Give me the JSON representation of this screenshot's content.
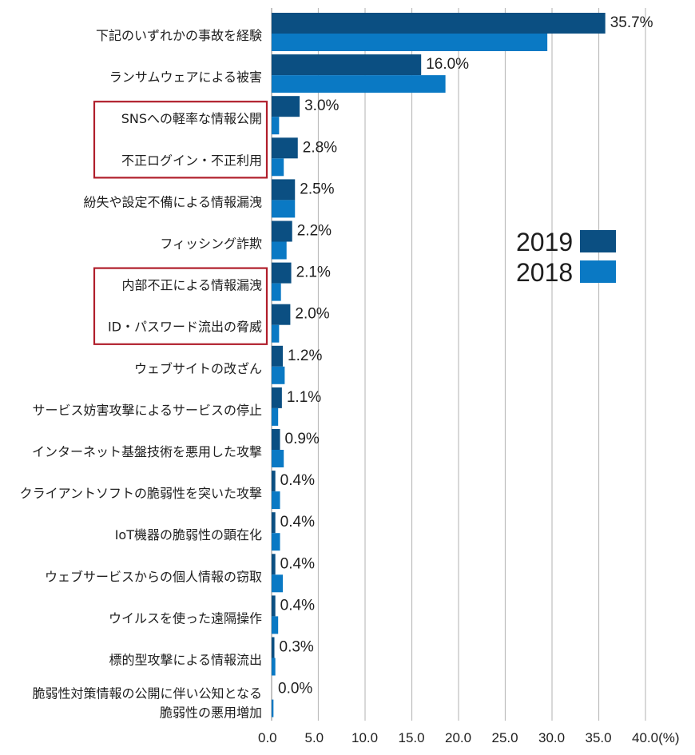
{
  "chart_data": {
    "type": "bar",
    "orientation": "horizontal",
    "title": "",
    "xlabel": "",
    "ylabel": "",
    "unit": "(%)",
    "xlim": [
      0,
      40
    ],
    "grid": true,
    "legend_position": "center-right",
    "categories": [
      "下記のいずれかの事故を経験",
      "ランサムウェアによる被害",
      "SNSへの軽率な情報公開",
      "不正ログイン・不正利用",
      "紛失や設定不備による情報漏洩",
      "フィッシング詐欺",
      "内部不正による情報漏洩",
      "ID・パスワード流出の脅威",
      "ウェブサイトの改ざん",
      "サービス妨害攻撃によるサービスの停止",
      "インターネット基盤技術を悪用した攻撃",
      "クライアントソフトの脆弱性を突いた攻撃",
      "IoT機器の脆弱性の顕在化",
      "ウェブサービスからの個人情報の窃取",
      "ウイルスを使った遠隔操作",
      "標的型攻撃による情報流出",
      "脆弱性対策情報の公開に伴い公知となる\n脆弱性の悪用増加"
    ],
    "series": [
      {
        "name": "2019",
        "color": "#0b4f82",
        "values": [
          35.7,
          16.0,
          3.0,
          2.8,
          2.5,
          2.2,
          2.1,
          2.0,
          1.2,
          1.1,
          0.9,
          0.4,
          0.4,
          0.4,
          0.4,
          0.3,
          0.0
        ]
      },
      {
        "name": "2018",
        "color": "#0a79c4",
        "values": [
          29.5,
          18.6,
          0.8,
          1.3,
          2.5,
          1.6,
          1.0,
          0.8,
          1.4,
          0.7,
          1.3,
          0.9,
          0.9,
          1.2,
          0.7,
          0.4,
          0.2
        ]
      }
    ],
    "data_labels": [
      "35.7%",
      "16.0%",
      "3.0%",
      "2.8%",
      "2.5%",
      "2.2%",
      "2.1%",
      "2.0%",
      "1.2%",
      "1.1%",
      "0.9%",
      "0.4%",
      "0.4%",
      "0.4%",
      "0.4%",
      "0.3%",
      "0.0%"
    ],
    "x_ticks": [
      0,
      5,
      10,
      15,
      20,
      25,
      30,
      35,
      40
    ],
    "x_tick_labels": [
      "0.0",
      "5.0",
      "10.0",
      "15.0",
      "20.0",
      "25.0",
      "30.0",
      "35.0",
      "40.0(%)"
    ],
    "highlight_groups": [
      {
        "color": "#b01e2b",
        "categories": [
          "SNSへの軽率な情報公開",
          "不正ログイン・不正利用"
        ]
      },
      {
        "color": "#b01e2b",
        "categories": [
          "内部不正による情報漏洩",
          "ID・パスワード流出の脅威"
        ]
      }
    ],
    "gridline_color": "#bdbdbd"
  }
}
